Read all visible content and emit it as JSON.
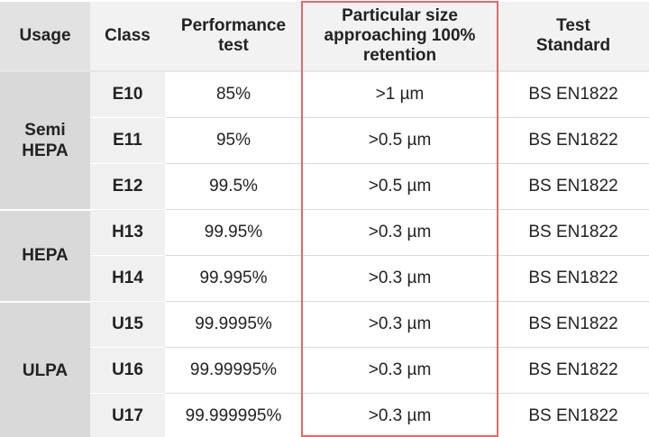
{
  "header": {
    "columns": [
      "Usage",
      "Class",
      "Performance\ntest",
      "Particular size\napproaching 100%\nretention",
      "Test\nStandard"
    ]
  },
  "groups": [
    {
      "usage": "Semi\nHEPA",
      "rows": [
        [
          "E10",
          "85%",
          ">1 µm",
          "BS EN1822"
        ],
        [
          "E11",
          "95%",
          ">0.5 µm",
          "BS EN1822"
        ],
        [
          "E12",
          "99.5%",
          ">0.5 µm",
          "BS EN1822"
        ]
      ]
    },
    {
      "usage": "HEPA",
      "rows": [
        [
          "H13",
          "99.95%",
          ">0.3 µm",
          "BS EN1822"
        ],
        [
          "H14",
          "99.995%",
          ">0.3 µm",
          "BS EN1822"
        ]
      ]
    },
    {
      "usage": "ULPA",
      "rows": [
        [
          "U15",
          "99.9995%",
          ">0.3 µm",
          "BS EN1822"
        ],
        [
          "U16",
          "99.99995%",
          ">0.3 µm",
          "BS EN1822"
        ],
        [
          "U17",
          "99.999995%",
          ">0.3 µm",
          "BS EN1822"
        ]
      ]
    }
  ]
}
